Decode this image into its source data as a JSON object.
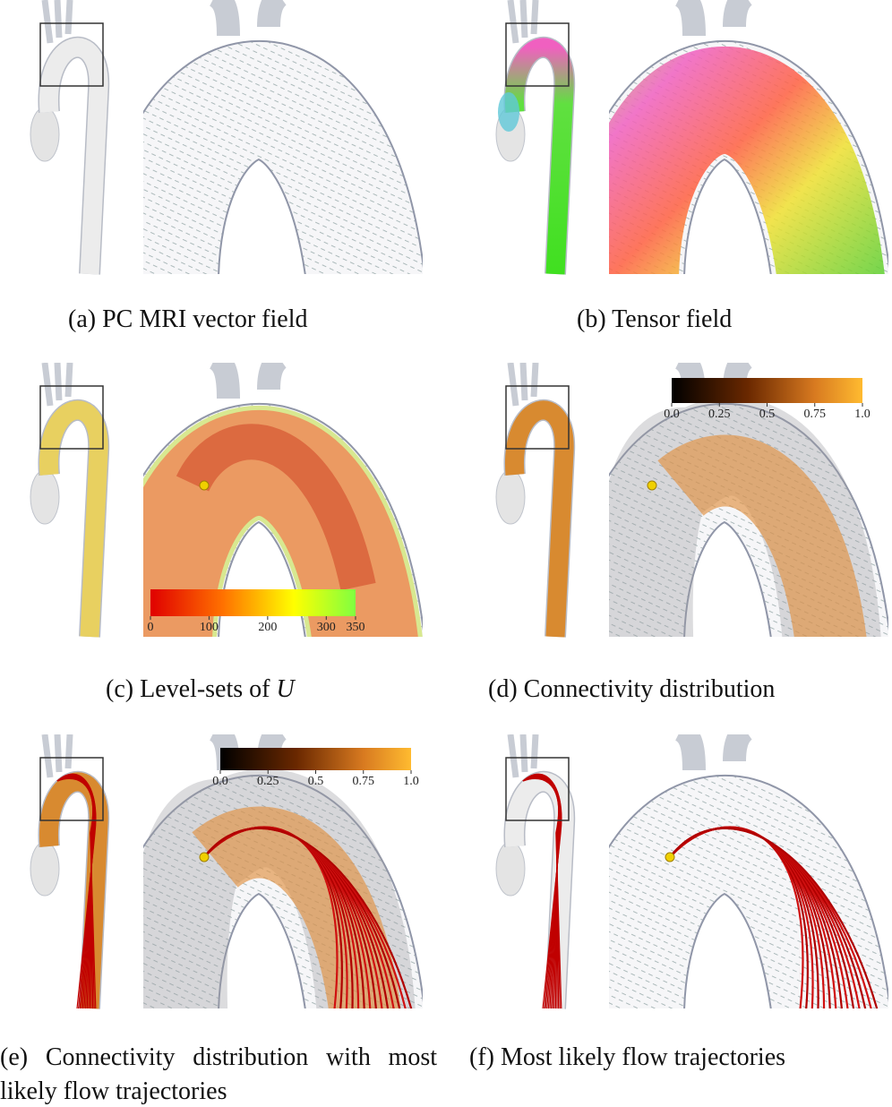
{
  "panels": [
    {
      "label": "(a)",
      "caption": "PC MRI vector field"
    },
    {
      "label": "(b)",
      "caption": "Tensor field"
    },
    {
      "label": "(c)",
      "caption": "Level-sets of",
      "variable": "U",
      "colorbar": {
        "ticks": [
          0,
          100,
          200,
          300,
          350
        ]
      }
    },
    {
      "label": "(d)",
      "caption": "Connectivity distribution",
      "colorbar": {
        "ticks": [
          {
            "value": 0,
            "label": "0.0"
          },
          0.25,
          0.5,
          0.75,
          {
            "value": 1,
            "label": "1.0"
          }
        ]
      }
    },
    {
      "label": "(e)",
      "caption": "Connectivity distribution with most likely flow trajectories",
      "colorbar": {
        "ticks": [
          {
            "value": 0,
            "label": "0.0"
          },
          0.25,
          0.5,
          0.75,
          {
            "value": 1,
            "label": "1.0"
          }
        ]
      }
    },
    {
      "label": "(f)",
      "caption": "Most likely flow trajectories"
    }
  ]
}
